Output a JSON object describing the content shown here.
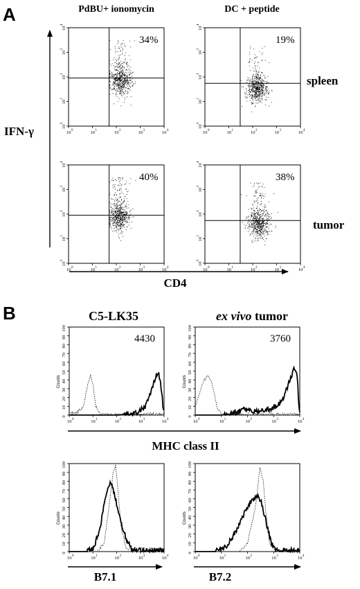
{
  "panel_a": {
    "letter": "A",
    "col_titles": [
      "PdBU+ ionomycin",
      "DC + peptide"
    ],
    "row_labels": [
      "spleen",
      "tumor"
    ],
    "y_axis_label": "IFN-γ",
    "x_axis_label": "CD4"
  },
  "panel_b": {
    "letter": "B",
    "col_titles": [
      "C5-LK35",
      "ex vivo tumor"
    ],
    "col_title_italic_prefix": [
      "",
      "ex vivo"
    ],
    "mhc_label": "MHC class II",
    "b71_label": "B7.1",
    "b72_label": "B7.2"
  },
  "tick_labels": {
    "x_exps": [
      "0",
      "1",
      "2",
      "3",
      "4"
    ],
    "x_base": "10",
    "hist_y": [
      "0",
      "10",
      "20",
      "30",
      "40",
      "50",
      "60",
      "70",
      "80",
      "90",
      "100"
    ],
    "hist_y_counts_label": "Counts"
  },
  "chart_data": [
    {
      "type": "scatter",
      "title": "PdBU+ ionomycin",
      "row": "spleen",
      "xlabel": "CD4",
      "ylabel": "IFN-γ",
      "xscale": "log",
      "yscale": "log",
      "xlim": [
        1,
        10000
      ],
      "ylim": [
        1,
        10000
      ],
      "gate": {
        "x": 50,
        "y": 90
      },
      "percent_label": "34%",
      "cluster": {
        "x_center": 150,
        "y_center": 70,
        "upper_fraction": 0.34
      }
    },
    {
      "type": "scatter",
      "title": "DC + peptide",
      "row": "spleen",
      "xlabel": "CD4",
      "ylabel": "IFN-γ",
      "xscale": "log",
      "yscale": "log",
      "xlim": [
        1,
        10000
      ],
      "ylim": [
        1,
        10000
      ],
      "gate": {
        "x": 30,
        "y": 55
      },
      "percent_label": "19%",
      "cluster": {
        "x_center": 150,
        "y_center": 35,
        "upper_fraction": 0.19
      }
    },
    {
      "type": "scatter",
      "title": "PdBU+ ionomycin",
      "row": "tumor",
      "xlabel": "CD4",
      "ylabel": "IFN-γ",
      "xscale": "log",
      "yscale": "log",
      "xlim": [
        1,
        10000
      ],
      "ylim": [
        1,
        10000
      ],
      "gate": {
        "x": 50,
        "y": 90
      },
      "percent_label": "40%",
      "cluster": {
        "x_center": 130,
        "y_center": 75,
        "upper_fraction": 0.4
      }
    },
    {
      "type": "scatter",
      "title": "DC + peptide",
      "row": "tumor",
      "xlabel": "CD4",
      "ylabel": "IFN-γ",
      "xscale": "log",
      "yscale": "log",
      "xlim": [
        1,
        10000
      ],
      "ylim": [
        1,
        10000
      ],
      "gate": {
        "x": 30,
        "y": 55
      },
      "percent_label": "38%",
      "cluster": {
        "x_center": 180,
        "y_center": 40,
        "upper_fraction": 0.38
      }
    },
    {
      "type": "line",
      "title": "C5-LK35",
      "xlabel": "MHC class II",
      "ylabel": "Counts",
      "xscale": "log",
      "xlim": [
        1,
        10000
      ],
      "ylim": [
        0,
        100
      ],
      "annotation": "4430",
      "series": [
        {
          "style": "dotted",
          "x": [
            2,
            4,
            6,
            8,
            10,
            13,
            20
          ],
          "y": [
            2,
            10,
            35,
            46,
            35,
            10,
            1
          ]
        },
        {
          "style": "solid",
          "x": [
            100,
            500,
            1500,
            3000,
            4500,
            6000,
            8000,
            9500
          ],
          "y": [
            0,
            1,
            8,
            28,
            45,
            48,
            25,
            3
          ]
        }
      ]
    },
    {
      "type": "line",
      "title": "ex vivo tumor",
      "xlabel": "MHC class II",
      "ylabel": "Counts",
      "xscale": "log",
      "xlim": [
        1,
        10000
      ],
      "ylim": [
        0,
        100
      ],
      "annotation": "3760",
      "series": [
        {
          "style": "dotted",
          "x": [
            1,
            2,
            3,
            4,
            5,
            7,
            10
          ],
          "y": [
            10,
            38,
            45,
            40,
            28,
            8,
            1
          ]
        },
        {
          "style": "solid",
          "x": [
            10,
            40,
            80,
            150,
            300,
            800,
            2000,
            4000,
            6000,
            8000,
            9500
          ],
          "y": [
            0,
            3,
            7,
            4,
            4,
            7,
            15,
            38,
            52,
            45,
            5
          ]
        }
      ]
    },
    {
      "type": "line",
      "title": "",
      "xlabel": "B7.1",
      "ylabel": "Counts",
      "xscale": "log",
      "xlim": [
        1,
        10000
      ],
      "ylim": [
        0,
        100
      ],
      "series": [
        {
          "style": "solid",
          "x": [
            5,
            10,
            20,
            35,
            55,
            70,
            90,
            120,
            180,
            300,
            500
          ],
          "y": [
            0,
            3,
            25,
            65,
            78,
            72,
            60,
            45,
            25,
            10,
            1
          ]
        },
        {
          "style": "dotted",
          "x": [
            15,
            30,
            50,
            70,
            90,
            110,
            150,
            250
          ],
          "y": [
            0,
            10,
            55,
            90,
            98,
            75,
            30,
            3
          ]
        }
      ]
    },
    {
      "type": "line",
      "title": "",
      "xlabel": "B7.2",
      "ylabel": "Counts",
      "xscale": "log",
      "xlim": [
        1,
        10000
      ],
      "ylim": [
        0,
        100
      ],
      "series": [
        {
          "style": "solid",
          "x": [
            5,
            15,
            40,
            80,
            150,
            250,
            350,
            500,
            800,
            1200
          ],
          "y": [
            0,
            5,
            25,
            45,
            60,
            63,
            55,
            35,
            10,
            1
          ]
        },
        {
          "style": "dotted",
          "x": [
            50,
            100,
            200,
            300,
            400,
            500,
            700,
            1200
          ],
          "y": [
            0,
            10,
            50,
            95,
            80,
            45,
            10,
            1
          ]
        }
      ]
    }
  ]
}
